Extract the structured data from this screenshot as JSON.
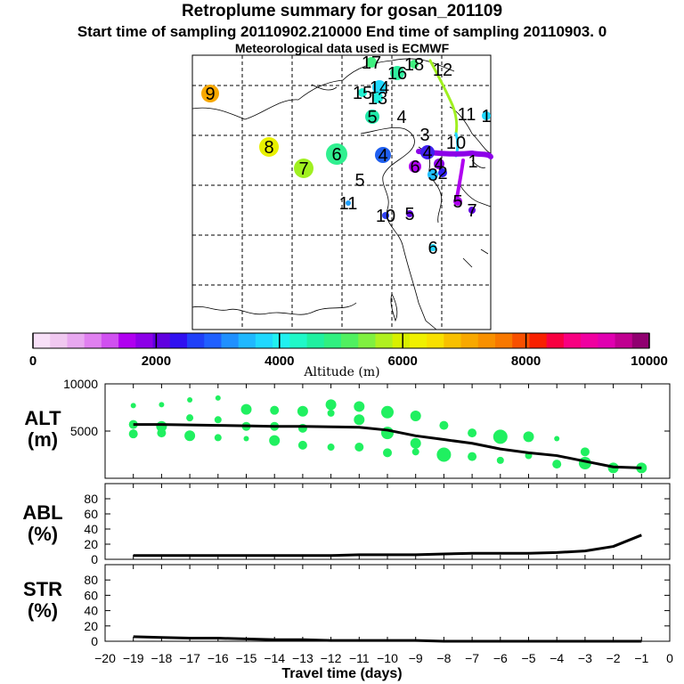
{
  "title": "Retroplume summary for gosan_201109",
  "subtitle": "Start time of sampling 20110902.210000     End time of sampling 20110903.     0",
  "subtitle2": "Meteorological data used is ECMWF",
  "colorbar": {
    "label": "Altitude (m)",
    "ticks": [
      "0",
      "2000",
      "4000",
      "6000",
      "8000",
      "10000"
    ],
    "colors": [
      "#f8e0f8",
      "#f0c8f0",
      "#e8a8f0",
      "#e080f0",
      "#d050f0",
      "#b000f0",
      "#8c00e8",
      "#6000e0",
      "#3010f0",
      "#2040f8",
      "#2060ff",
      "#2090ff",
      "#20b8ff",
      "#20d8ff",
      "#20f0f0",
      "#20f8c8",
      "#20f0a0",
      "#30f080",
      "#50f060",
      "#80f040",
      "#b0f020",
      "#d8f000",
      "#f0f000",
      "#f8e000",
      "#f8c000",
      "#f8a800",
      "#f89000",
      "#f87800",
      "#f85000",
      "#f82000",
      "#f80040",
      "#f80080",
      "#f000a0",
      "#e000b0",
      "#c00090",
      "#900070"
    ]
  },
  "map": {
    "labels": [
      {
        "text": "9",
        "color": "#f8a800"
      },
      {
        "text": "8",
        "color": "#e8f000"
      },
      {
        "text": "7",
        "color": "#a0f020"
      },
      {
        "text": "6",
        "color": "#30f090"
      },
      {
        "text": "5",
        "color": "#20e8a8"
      },
      {
        "text": "4",
        "color": "#20f0a0"
      },
      {
        "text": "5",
        "color": "#2080ff"
      },
      {
        "text": "4",
        "color": "#2060f0"
      },
      {
        "text": "11",
        "color": "#20a0ff"
      },
      {
        "text": "10",
        "color": "#3040f0"
      },
      {
        "text": "5",
        "color": "#6000e0"
      },
      {
        "text": "6",
        "color": "#b000f0"
      },
      {
        "text": "17",
        "color": "#40f080"
      },
      {
        "text": "16",
        "color": "#30f0a0"
      },
      {
        "text": "18",
        "color": "#40f080"
      },
      {
        "text": "12",
        "color": "#80f040"
      },
      {
        "text": "15",
        "color": "#20f0d0"
      },
      {
        "text": "14",
        "color": "#20d8ff"
      },
      {
        "text": "13",
        "color": "#20f0e0"
      },
      {
        "text": "11",
        "color": "#a0f020"
      },
      {
        "text": "3",
        "color": "#2080ff"
      },
      {
        "text": "10",
        "color": "#8c00e8"
      },
      {
        "text": "4",
        "color": "#4020f0"
      },
      {
        "text": "4",
        "color": "#8c00e8"
      },
      {
        "text": "3",
        "color": "#20c0ff"
      },
      {
        "text": "2",
        "color": "#3020f0"
      },
      {
        "text": "1",
        "color": "#8c00e8"
      },
      {
        "text": "7",
        "color": "#6000e0"
      },
      {
        "text": "5",
        "color": "#b000f0"
      },
      {
        "text": "6",
        "color": "#20d8ff"
      },
      {
        "text": "1",
        "color": "#20d8ff"
      }
    ]
  },
  "chart_data": [
    {
      "type": "line",
      "panel": "ALT",
      "ylabel": "ALT\n(m)",
      "ylim": [
        0,
        10000
      ],
      "yticks": [
        "10000",
        "5000"
      ],
      "xlim": [
        -20,
        0
      ],
      "series": [
        {
          "name": "mean altitude",
          "x": [
            -19,
            -18,
            -17,
            -16,
            -15,
            -14,
            -13,
            -12,
            -11,
            -10,
            -9,
            -8,
            -7,
            -6,
            -5,
            -4,
            -3,
            -2,
            -1
          ],
          "values": [
            5700,
            5700,
            5650,
            5600,
            5550,
            5500,
            5500,
            5450,
            5400,
            5100,
            4500,
            4100,
            3700,
            3100,
            2700,
            2400,
            1800,
            1200,
            1100
          ]
        }
      ],
      "scatter": {
        "x": [
          -19,
          -19,
          -19,
          -18,
          -18,
          -18,
          -17,
          -17,
          -17,
          -16,
          -16,
          -16,
          -15,
          -15,
          -15,
          -14,
          -14,
          -14,
          -13,
          -13,
          -13,
          -12,
          -12,
          -12,
          -11,
          -11,
          -11,
          -10,
          -10,
          -10,
          -9,
          -9,
          -9,
          -8,
          -8,
          -7,
          -7,
          -6,
          -6,
          -5,
          -5,
          -4,
          -4,
          -3,
          -3,
          -2,
          -1
        ],
        "y": [
          7700,
          5700,
          4700,
          7800,
          5500,
          4800,
          8300,
          6400,
          4500,
          8500,
          6200,
          4300,
          7300,
          5500,
          4200,
          7200,
          5500,
          4000,
          7100,
          5300,
          3500,
          7800,
          6900,
          3300,
          7600,
          6200,
          3300,
          7000,
          4800,
          2700,
          6600,
          3700,
          2800,
          5600,
          2500,
          4800,
          2300,
          4400,
          1900,
          4400,
          2400,
          4200,
          1500,
          2800,
          1600,
          1100,
          1100
        ],
        "r": [
          3,
          5,
          5,
          3,
          6,
          5,
          3,
          4,
          6,
          3,
          4,
          4,
          6,
          5,
          3,
          5,
          5,
          6,
          6,
          5,
          5,
          6,
          4,
          4,
          6,
          6,
          5,
          7,
          7,
          5,
          6,
          6,
          4,
          5,
          8,
          5,
          5,
          8,
          4,
          6,
          4,
          3,
          5,
          5,
          7,
          6,
          6
        ],
        "color": "#20f060"
      }
    },
    {
      "type": "line",
      "panel": "ABL",
      "ylabel": "ABL\n(%)",
      "ylim": [
        0,
        100
      ],
      "yticks": [
        "0",
        "20",
        "40",
        "60",
        "80"
      ],
      "xlim": [
        -20,
        0
      ],
      "series": [
        {
          "name": "fraction in ABL",
          "x": [
            -19,
            -18,
            -17,
            -16,
            -15,
            -14,
            -13,
            -12,
            -11,
            -10,
            -9,
            -8,
            -7,
            -6,
            -5,
            -4,
            -3,
            -2,
            -1
          ],
          "values": [
            5,
            5,
            5,
            5,
            5,
            5,
            5,
            5,
            6,
            6,
            6,
            7,
            8,
            8,
            8,
            9,
            11,
            17,
            32
          ]
        }
      ]
    },
    {
      "type": "line",
      "panel": "STR",
      "ylabel": "STR\n(%)",
      "ylim": [
        0,
        100
      ],
      "yticks": [
        "0",
        "20",
        "40",
        "60",
        "80"
      ],
      "xlim": [
        -20,
        0
      ],
      "xticks": [
        "-20",
        "-19",
        "-18",
        "-17",
        "-16",
        "-15",
        "-14",
        "-13",
        "-12",
        "-11",
        "-10",
        "-9",
        "-8",
        "-7",
        "-6",
        "-5",
        "-4",
        "-3",
        "-2",
        "-1",
        "0"
      ],
      "xlabel": "Travel time (days)",
      "series": [
        {
          "name": "fraction in stratosphere",
          "x": [
            -19,
            -18,
            -17,
            -16,
            -15,
            -14,
            -13,
            -12,
            -11,
            -10,
            -9,
            -8,
            -7,
            -6,
            -5,
            -4,
            -3,
            -2,
            -1
          ],
          "values": [
            6,
            5,
            4,
            4,
            3,
            2,
            2,
            1,
            1,
            1,
            1,
            0,
            0,
            0,
            0,
            0,
            0,
            0,
            0
          ]
        }
      ]
    }
  ]
}
